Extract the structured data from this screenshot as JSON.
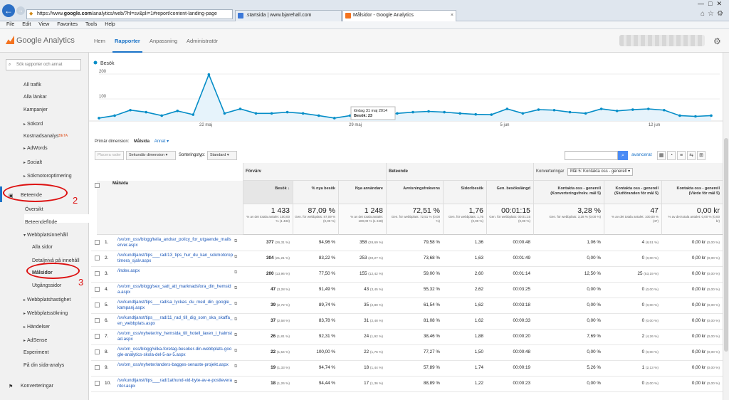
{
  "browser": {
    "url_prefix": "https://www.",
    "url_domain": "google.com",
    "url_rest": "/analytics/web/?hl=sv&pli=1#report/content-landing-page",
    "tabs": [
      {
        "label": ".startsida | www.bjarehall.com"
      },
      {
        "label": "Målsidor - Google Analytics"
      }
    ],
    "menu": [
      "File",
      "Edit",
      "View",
      "Favorites",
      "Tools",
      "Help"
    ]
  },
  "header": {
    "logo": "Google Analytics",
    "nav": [
      "Hem",
      "Rapporter",
      "Anpassning",
      "Administratör"
    ]
  },
  "sidebar": {
    "search_placeholder": "Sök rapporter och annat",
    "items": [
      {
        "label": "All trafik",
        "indent": 1
      },
      {
        "label": "Alla länkar",
        "indent": 1
      },
      {
        "label": "Kampanjer",
        "indent": 1
      },
      {
        "label": "Sökord",
        "indent": 1,
        "arrow": true
      },
      {
        "label": "Kostnadsanalys",
        "indent": 1,
        "beta": "BETA"
      },
      {
        "label": "AdWords",
        "indent": 1,
        "arrow": true
      },
      {
        "label": "Socialt",
        "indent": 1,
        "arrow": true
      },
      {
        "label": "Sökmotoroptimering",
        "indent": 1,
        "arrow": true
      },
      {
        "label": "Beteende",
        "indent": 0
      },
      {
        "label": "Översikt",
        "indent": 1
      },
      {
        "label": "Beteendeflöde",
        "indent": 1
      },
      {
        "label": "Webbplatsinnehåll",
        "indent": 1,
        "arrow": true,
        "open": true
      },
      {
        "label": "Alla sidor",
        "indent": 2
      },
      {
        "label": "Detaljnivå på innehåll",
        "indent": 2
      },
      {
        "label": "Målsidor",
        "indent": 2,
        "selected": true
      },
      {
        "label": "Utgångssidor",
        "indent": 2
      },
      {
        "label": "Webbplatshastighet",
        "indent": 1,
        "arrow": true
      },
      {
        "label": "Webbplatssökning",
        "indent": 1,
        "arrow": true
      },
      {
        "label": "Händelser",
        "indent": 1,
        "arrow": true
      },
      {
        "label": "AdSense",
        "indent": 1,
        "arrow": true
      },
      {
        "label": "Experiment",
        "indent": 1
      },
      {
        "label": "På din sida-analys",
        "indent": 1
      },
      {
        "label": "Konverteringar",
        "indent": 0
      }
    ]
  },
  "annotations": {
    "two": "2",
    "three": "3"
  },
  "chart_data": {
    "type": "line",
    "series": [
      {
        "name": "Besök",
        "values": [
          23,
          33,
          55,
          47,
          33,
          52,
          37,
          198,
          42,
          60,
          42,
          42,
          47,
          42,
          33,
          23,
          33,
          38,
          33,
          42,
          47,
          50,
          47,
          42,
          38,
          37,
          60,
          42,
          57,
          55,
          47,
          42,
          60,
          52,
          57,
          60,
          55,
          33,
          30,
          33
        ]
      }
    ],
    "y_ticks": [
      "100",
      "200"
    ],
    "x_labels": [
      "22 maj",
      "29 maj",
      "5 jun",
      "12 jun"
    ],
    "ylim": [
      0,
      220
    ],
    "tooltip": {
      "date": "lördag 31 maj 2014",
      "label": "Besök: 23"
    },
    "color": "#058dc7"
  },
  "controls": {
    "primary_dim_label": "Primär dimension:",
    "primary_dim_value": "Målsida",
    "other": "Annat",
    "plot_rows": "Placera rader",
    "secondary_dim": "Sekundär dimension",
    "sort_label": "Sorteringstyp:",
    "sort_value": "Standard",
    "advanced": "avancerat",
    "conversions_label": "Konverteringar",
    "goal_select": "Mål 5: Kontakta oss - generell"
  },
  "table": {
    "groups": [
      "Förvärv",
      "Beteende"
    ],
    "landing_header": "Målsida",
    "columns": [
      "Besök",
      "% nya besök",
      "Nya användare",
      "Avvisningsfrekvens",
      "Sidor/besök",
      "Gen. besökslängd",
      "Kontakta oss - generell (Konverteringsfrekv. mål 5)",
      "Kontakta oss - generell (Slutföranden för mål 5)",
      "Kontakta oss - generell (Värde för mål 5)"
    ],
    "totals": [
      {
        "big": "1 433",
        "small": "% av det totala antalet: 100,00 % (1 433)"
      },
      {
        "big": "87,09 %",
        "small": "Gen. för webbplats: 87,09 % (0,00 %)"
      },
      {
        "big": "1 248",
        "small": "% av det totala antalet: 100,00 % (1 248)"
      },
      {
        "big": "72,51 %",
        "small": "Gen. för webbplats: 72,51 % (0,00 %)"
      },
      {
        "big": "1,76",
        "small": "Gen. för webbplats: 1,76 (0,00 %)"
      },
      {
        "big": "00:01:15",
        "small": "Gen. för webbplats: 00:01:15 (0,00 %)"
      },
      {
        "big": "3,28 %",
        "small": "Gen. för webbplats: 3,28 % (0,00 %)"
      },
      {
        "big": "47",
        "small": "% av det totala antalet: 100,00 % (47)"
      },
      {
        "big": "0,00 kr",
        "small": "% av det totala antalet: 0,00 % (0,00 kr)"
      }
    ],
    "rows": [
      {
        "n": "1.",
        "page": "/sv/om_oss/blogg/telia_andrar_policy_for_utgaende_mailserver.aspx",
        "visits": "377",
        "visits_pct": "(26,31 %)",
        "new_pct": "94,96 %",
        "new_users": "358",
        "new_users_pct": "(28,69 %)",
        "bounce": "79,58 %",
        "pages": "1,36",
        "dur": "00:00:48",
        "conv": "1,06 %",
        "compl": "4",
        "compl_pct": "(8,51 %)",
        "value": "0,00 kr",
        "value_pct": "(0,00 %)"
      },
      {
        "n": "2.",
        "page": "/sv/kundtjanst/tips___rad/13_tips_hur_du_kan_sokmotoroptimera_sjalv.aspx",
        "visits": "304",
        "visits_pct": "(21,21 %)",
        "new_pct": "83,22 %",
        "new_users": "253",
        "new_users_pct": "(20,27 %)",
        "bounce": "73,68 %",
        "pages": "1,63",
        "dur": "00:01:49",
        "conv": "0,00 %",
        "compl": "0",
        "compl_pct": "(0,00 %)",
        "value": "0,00 kr",
        "value_pct": "(0,00 %)"
      },
      {
        "n": "3.",
        "page": "/index.aspx",
        "visits": "200",
        "visits_pct": "(13,96 %)",
        "new_pct": "77,50 %",
        "new_users": "155",
        "new_users_pct": "(12,42 %)",
        "bounce": "59,00 %",
        "pages": "2,60",
        "dur": "00:01:14",
        "conv": "12,50 %",
        "compl": "25",
        "compl_pct": "(53,19 %)",
        "value": "0,00 kr",
        "value_pct": "(0,00 %)"
      },
      {
        "n": "4.",
        "page": "/sv/om_oss/blogg/sex_satt_att_marknadsfora_din_hemsida.aspx",
        "visits": "47",
        "visits_pct": "(3,28 %)",
        "new_pct": "91,49 %",
        "new_users": "43",
        "new_users_pct": "(3,45 %)",
        "bounce": "55,32 %",
        "pages": "2,62",
        "dur": "00:03:25",
        "conv": "0,00 %",
        "compl": "0",
        "compl_pct": "(0,00 %)",
        "value": "0,00 kr",
        "value_pct": "(0,00 %)"
      },
      {
        "n": "5.",
        "page": "/sv/kundtjanst/tips___rad/sa_lyckas_du_med_din_google_kampanj.aspx",
        "visits": "39",
        "visits_pct": "(2,72 %)",
        "new_pct": "89,74 %",
        "new_users": "35",
        "new_users_pct": "(2,80 %)",
        "bounce": "61,54 %",
        "pages": "1,62",
        "dur": "00:03:18",
        "conv": "0,00 %",
        "compl": "0",
        "compl_pct": "(0,00 %)",
        "value": "0,00 kr",
        "value_pct": "(0,00 %)"
      },
      {
        "n": "6.",
        "page": "/sv/kundtjanst/tips___rad/11_rad_till_dig_som_ska_skaffa_en_webbplats.aspx",
        "visits": "37",
        "visits_pct": "(2,58 %)",
        "new_pct": "83,78 %",
        "new_users": "31",
        "new_users_pct": "(2,48 %)",
        "bounce": "81,08 %",
        "pages": "1,62",
        "dur": "00:00:33",
        "conv": "0,00 %",
        "compl": "0",
        "compl_pct": "(0,00 %)",
        "value": "0,00 kr",
        "value_pct": "(0,00 %)"
      },
      {
        "n": "7.",
        "page": "/sv/om_oss/nyheter/ny_hemsida_till_hotell_laxen_i_halmstad.aspx",
        "visits": "26",
        "visits_pct": "(1,81 %)",
        "new_pct": "92,31 %",
        "new_users": "24",
        "new_users_pct": "(1,92 %)",
        "bounce": "38,46 %",
        "pages": "1,88",
        "dur": "00:00:20",
        "conv": "7,69 %",
        "compl": "2",
        "compl_pct": "(4,26 %)",
        "value": "0,00 kr",
        "value_pct": "(0,00 %)"
      },
      {
        "n": "8.",
        "page": "/sv/om_oss/blogg/vilka-foretag-besoker-din-webbplats-google-analytics-skola-del-5-av-5.aspx",
        "visits": "22",
        "visits_pct": "(1,54 %)",
        "new_pct": "100,00 %",
        "new_users": "22",
        "new_users_pct": "(1,76 %)",
        "bounce": "77,27 %",
        "pages": "1,50",
        "dur": "00:00:48",
        "conv": "0,00 %",
        "compl": "0",
        "compl_pct": "(0,00 %)",
        "value": "0,00 kr",
        "value_pct": "(0,00 %)"
      },
      {
        "n": "9.",
        "page": "/sv/om_oss/nyheter/anders-bagges-senaste-projekt.aspx",
        "visits": "19",
        "visits_pct": "(1,33 %)",
        "new_pct": "94,74 %",
        "new_users": "18",
        "new_users_pct": "(1,44 %)",
        "bounce": "57,89 %",
        "pages": "1,74",
        "dur": "00:00:19",
        "conv": "5,26 %",
        "compl": "1",
        "compl_pct": "(2,13 %)",
        "value": "0,00 kr",
        "value_pct": "(0,00 %)"
      },
      {
        "n": "10.",
        "page": "/sv/kundtjanst/tips___rad/1athund-vid-byte-av-e-postleverantor.aspx",
        "visits": "18",
        "visits_pct": "(1,26 %)",
        "new_pct": "94,44 %",
        "new_users": "17",
        "new_users_pct": "(1,36 %)",
        "bounce": "88,89 %",
        "pages": "1,22",
        "dur": "00:00:23",
        "conv": "0,00 %",
        "compl": "0",
        "compl_pct": "(0,00 %)",
        "value": "0,00 kr",
        "value_pct": "(0,00 %)"
      }
    ]
  }
}
